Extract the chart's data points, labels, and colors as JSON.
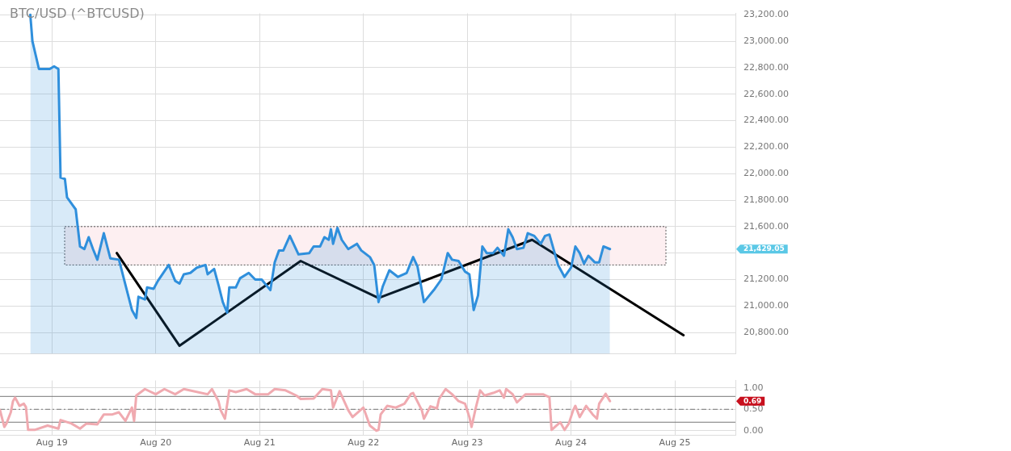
{
  "chart_data": [
    {
      "type": "line",
      "title": "BTC/USD (^BTCUSD)",
      "series": [
        {
          "type": "area",
          "color": "#2f8fdc",
          "x": [
            "--08-18T19:00",
            "--08-18T19:30",
            "--08-18T21:00",
            "--08-18T23:30",
            "--08-19T00:30",
            "--08-19T01:30",
            "--08-19T02:00",
            "--08-19T03:00",
            "--08-19T03:30",
            "--08-19T05:30",
            "--08-19T06:30",
            "--08-19T07:30",
            "--08-19T08:30",
            "--08-19T09:30",
            "--08-19T10:30",
            "--08-19T12:00",
            "--08-19T13:30",
            "--08-19T15:30",
            "--08-19T17:00",
            "--08-19T18:30",
            "--08-19T19:30",
            "--08-19T20:00",
            "--08-19T21:30",
            "--08-19T22:00",
            "--08-19T23:30",
            "--08-20T00:30",
            "--08-20T03:00",
            "--08-20T04:30",
            "--08-20T05:30",
            "--08-20T06:30",
            "--08-20T08:00",
            "--08-20T09:30",
            "--08-20T11:30",
            "--08-20T12:00",
            "--08-20T13:30",
            "--08-20T14:30",
            "--08-20T15:30",
            "--08-20T16:30",
            "--08-20T17:00",
            "--08-20T18:30",
            "--08-20T19:30",
            "--08-20T21:30",
            "--08-20T23:00",
            "--08-21T00:30",
            "--08-21T02:30",
            "--08-21T03:30",
            "--08-21T04:30",
            "--08-21T05:30",
            "--08-21T07:00",
            "--08-21T09:00",
            "--08-21T11:30",
            "--08-21T12:30",
            "--08-21T14:00",
            "--08-21T15:00",
            "--08-21T16:00",
            "--08-21T16:30",
            "--08-21T17:00",
            "--08-21T18:00",
            "--08-21T19:00",
            "--08-21T20:30",
            "--08-21T22:30",
            "--08-21T23:30",
            "--08-22T01:30",
            "--08-22T02:30",
            "--08-22T03:30",
            "--08-22T04:30",
            "--08-22T06:00",
            "--08-22T08:00",
            "--08-22T10:00",
            "--08-22T11:30",
            "--08-22T12:30",
            "--08-22T14:00",
            "--08-22T16:30",
            "--08-22T18:00",
            "--08-22T19:30",
            "--08-22T20:30",
            "--08-22T22:00",
            "--08-22T23:30",
            "--08-23T00:30",
            "--08-23T01:30",
            "--08-23T02:30",
            "--08-23T03:30",
            "--08-23T04:30",
            "--08-23T06:00",
            "--08-23T07:00",
            "--08-23T08:30",
            "--08-23T09:30",
            "--08-23T10:30",
            "--08-23T11:30",
            "--08-23T13:00",
            "--08-23T14:00",
            "--08-23T15:30",
            "--08-23T17:00",
            "--08-23T18:00",
            "--08-23T19:00",
            "--08-23T21:00",
            "--08-23T22:30",
            "--08-24T00:00",
            "--08-24T01:00",
            "--08-24T02:00",
            "--08-24T03:00",
            "--08-24T04:00",
            "--08-24T05:30",
            "--08-24T06:30",
            "--08-24T07:30",
            "--08-24T09:00"
          ],
          "values": [
            23200,
            23000,
            22790,
            22790,
            22810,
            22790,
            21970,
            21960,
            21820,
            21730,
            21450,
            21430,
            21520,
            21430,
            21350,
            21550,
            21360,
            21350,
            21160,
            20970,
            20910,
            21070,
            21050,
            21140,
            21130,
            21190,
            21310,
            21190,
            21170,
            21240,
            21250,
            21290,
            21310,
            21240,
            21280,
            21160,
            21030,
            20950,
            21140,
            21140,
            21210,
            21250,
            21200,
            21200,
            21120,
            21330,
            21420,
            21420,
            21530,
            21390,
            21400,
            21450,
            21450,
            21520,
            21500,
            21580,
            21470,
            21590,
            21500,
            21430,
            21470,
            21420,
            21370,
            21310,
            21030,
            21150,
            21270,
            21220,
            21250,
            21370,
            21300,
            21030,
            21130,
            21200,
            21400,
            21350,
            21340,
            21260,
            21240,
            20970,
            21080,
            21450,
            21400,
            21400,
            21440,
            21380,
            21580,
            21520,
            21430,
            21440,
            21550,
            21530,
            21470,
            21530,
            21540,
            21310,
            21220,
            21290,
            21450,
            21400,
            21320,
            21380,
            21330,
            21330,
            21450,
            21430
          ]
        },
        {
          "type": "line",
          "color": "#000000",
          "x": [
            "--08-19T15:00",
            "--08-20T05:30",
            "--08-21T09:30",
            "--08-22T03:30",
            "--08-23T15:00",
            "--08-25T02:00"
          ],
          "values": [
            21400,
            20700,
            21340,
            21060,
            21500,
            20780
          ]
        }
      ],
      "xlim": [
        "--08-18T12:00",
        "--08-25T14:00"
      ],
      "xticks": [
        {
          "value": "--08-19",
          "label": null
        },
        {
          "value": "--08-20",
          "label": null
        },
        {
          "value": "--08-21",
          "label": null
        },
        {
          "value": "--08-22",
          "label": null
        },
        {
          "value": "--08-23",
          "label": null
        },
        {
          "value": "--08-24",
          "label": null
        },
        {
          "value": "--08-25",
          "label": null
        }
      ],
      "ylim": [
        20640,
        23210
      ],
      "yticks": [
        {
          "value": 20800,
          "label": "20,800.00"
        },
        {
          "value": 21000,
          "label": "21,000.00"
        },
        {
          "value": 21200,
          "label": "21,200.00"
        },
        {
          "value": 21400,
          "label": null
        },
        {
          "value": 21600,
          "label": "21,600.00"
        },
        {
          "value": 21800,
          "label": "21,800.00"
        },
        {
          "value": 22000,
          "label": "22,000.00"
        },
        {
          "value": 22200,
          "label": "22,200.00"
        },
        {
          "value": 22400,
          "label": "22,400.00"
        },
        {
          "value": 22600,
          "label": "22,600.00"
        },
        {
          "value": 22800,
          "label": "22,800.00"
        },
        {
          "value": 23000,
          "label": "23,000.00"
        },
        {
          "value": 23200,
          "label": "23,200.00"
        }
      ],
      "bands": [
        {
          "axis": "y",
          "from": 21310,
          "to": 21600,
          "color": "#fdeff1"
        }
      ],
      "annotations": [
        "21,429.05"
      ],
      "tick_labels": "y",
      "grid": true,
      "legend": false,
      "marker": "none"
    },
    {
      "type": "line",
      "series": [
        {
          "color": "#f0aab0",
          "x": [
            "--08-18T12:00",
            "--08-18T13:00",
            "--08-18T13:30",
            "--08-18T14:30",
            "--08-18T15:00",
            "--08-18T15:30",
            "--08-18T16:30",
            "--08-18T17:30",
            "--08-18T18:00",
            "--08-18T18:30",
            "--08-18T20:00",
            "--08-18T23:00",
            "--08-19T01:30",
            "--08-19T02:00",
            "--08-19T04:30",
            "--08-19T06:30",
            "--08-19T08:00",
            "--08-19T10:30",
            "--08-19T12:00",
            "--08-19T14:00",
            "--08-19T15:30",
            "--08-19T17:00",
            "--08-19T18:30",
            "--08-19T19:00",
            "--08-19T19:30",
            "--08-19T21:30",
            "--08-20T00:00",
            "--08-20T02:00",
            "--08-20T04:30",
            "--08-20T06:30",
            "--08-20T12:00",
            "--08-20T13:00",
            "--08-20T14:30",
            "--08-20T15:00",
            "--08-20T16:00",
            "--08-20T17:00",
            "--08-20T18:30",
            "--08-20T21:00",
            "--08-20T23:00",
            "--08-21T02:00",
            "--08-21T03:30",
            "--08-21T06:00",
            "--08-21T08:30",
            "--08-21T09:30",
            "--08-21T12:30",
            "--08-21T14:30",
            "--08-21T16:30",
            "--08-21T17:00",
            "--08-21T18:30",
            "--08-21T20:30",
            "--08-21T21:30",
            "--08-22T00:00",
            "--08-22T01:30",
            "--08-22T03:00",
            "--08-22T03:30",
            "--08-22T04:00",
            "--08-22T05:30",
            "--08-22T07:30",
            "--08-22T09:30",
            "--08-22T11:00",
            "--08-22T11:30",
            "--08-22T13:30",
            "--08-22T14:00",
            "--08-22T15:30",
            "--08-22T17:00",
            "--08-22T17:30",
            "--08-22T19:00",
            "--08-22T20:30",
            "--08-22T22:00",
            "--08-22T23:30",
            "--08-23T00:30",
            "--08-23T01:00",
            "--08-23T02:00",
            "--08-23T03:00",
            "--08-23T04:00",
            "--08-23T06:00",
            "--08-23T07:30",
            "--08-23T08:30",
            "--08-23T09:00",
            "--08-23T10:30",
            "--08-23T11:30",
            "--08-23T13:30",
            "--08-23T17:30",
            "--08-23T19:00",
            "--08-23T19:30",
            "--08-23T21:30",
            "--08-23T22:30",
            "--08-23T23:30",
            "--08-24T00:30",
            "--08-24T01:00",
            "--08-24T02:00",
            "--08-24T03:30",
            "--08-24T05:00",
            "--08-24T06:00",
            "--08-24T06:30",
            "--08-24T08:00",
            "--08-24T09:00"
          ],
          "values": [
            0.48,
            0.09,
            0.17,
            0.43,
            0.69,
            0.77,
            0.58,
            0.63,
            0.55,
            0.02,
            0.02,
            0.12,
            0.05,
            0.25,
            0.17,
            0.05,
            0.17,
            0.15,
            0.38,
            0.38,
            0.43,
            0.23,
            0.54,
            0.23,
            0.82,
            0.97,
            0.85,
            0.97,
            0.85,
            0.97,
            0.85,
            0.97,
            0.69,
            0.48,
            0.28,
            0.94,
            0.9,
            0.97,
            0.85,
            0.85,
            0.97,
            0.94,
            0.82,
            0.74,
            0.75,
            0.97,
            0.94,
            0.54,
            0.92,
            0.48,
            0.32,
            0.54,
            0.12,
            0.0,
            0.02,
            0.38,
            0.58,
            0.54,
            0.63,
            0.86,
            0.88,
            0.48,
            0.28,
            0.57,
            0.52,
            0.74,
            0.97,
            0.85,
            0.69,
            0.63,
            0.32,
            0.09,
            0.54,
            0.94,
            0.82,
            0.88,
            0.94,
            0.77,
            0.97,
            0.85,
            0.66,
            0.85,
            0.85,
            0.78,
            0.02,
            0.2,
            0.02,
            0.17,
            0.48,
            0.58,
            0.32,
            0.58,
            0.38,
            0.28,
            0.63,
            0.86,
            0.69
          ]
        }
      ],
      "xlim": [
        "--08-18T12:00",
        "--08-25T14:00"
      ],
      "xticks": [
        {
          "value": "--08-19",
          "label": "Aug 19"
        },
        {
          "value": "--08-20",
          "label": "Aug 20"
        },
        {
          "value": "--08-21",
          "label": "Aug 21"
        },
        {
          "value": "--08-22",
          "label": "Aug 22"
        },
        {
          "value": "--08-23",
          "label": "Aug 23"
        },
        {
          "value": "--08-24",
          "label": "Aug 24"
        },
        {
          "value": "--08-25",
          "label": "Aug 25"
        }
      ],
      "ylim": [
        -0.11,
        1.17
      ],
      "yticks": [
        {
          "value": 0,
          "label": "0.00"
        },
        {
          "value": 0.5,
          "label": "0.50"
        },
        {
          "value": 1,
          "label": "1.00"
        }
      ],
      "ref_lines": [
        {
          "axis": "y",
          "value": 0.8,
          "color": "#777777",
          "line_style": "solid"
        },
        {
          "axis": "y",
          "value": 0.2,
          "color": "#777777",
          "line_style": "solid"
        },
        {
          "axis": "y",
          "value": 0.5,
          "color": "#777777",
          "line_style": "dashed"
        }
      ],
      "annotations": [
        "0.69"
      ],
      "grid": true,
      "legend": false,
      "marker": "none"
    }
  ]
}
